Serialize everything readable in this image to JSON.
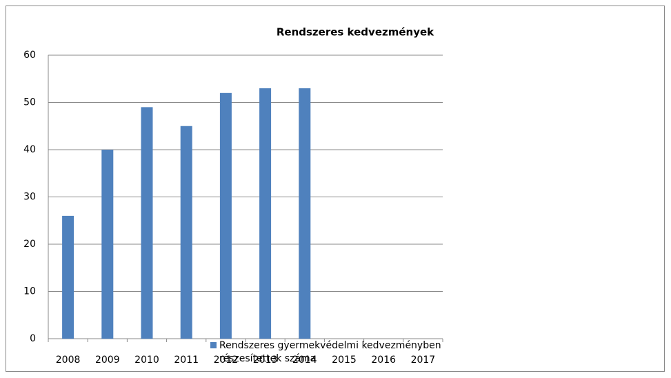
{
  "chart_data": {
    "type": "bar",
    "title": "Rendszeres kedvezmények",
    "categories": [
      "2008",
      "2009",
      "2010",
      "2011",
      "2012",
      "2013",
      "2014",
      "2015",
      "2016",
      "2017"
    ],
    "series": [
      {
        "name": "Rendszeres gyermekvédelmi kedvezményben részesítettek száma",
        "color": "#4f81bd",
        "values": [
          26,
          40,
          49,
          45,
          52,
          53,
          53,
          null,
          null,
          null
        ]
      }
    ],
    "ylim": [
      0,
      60
    ],
    "yticks": [
      0,
      10,
      20,
      30,
      40,
      50,
      60
    ],
    "grid": true,
    "legend": "bottom"
  }
}
